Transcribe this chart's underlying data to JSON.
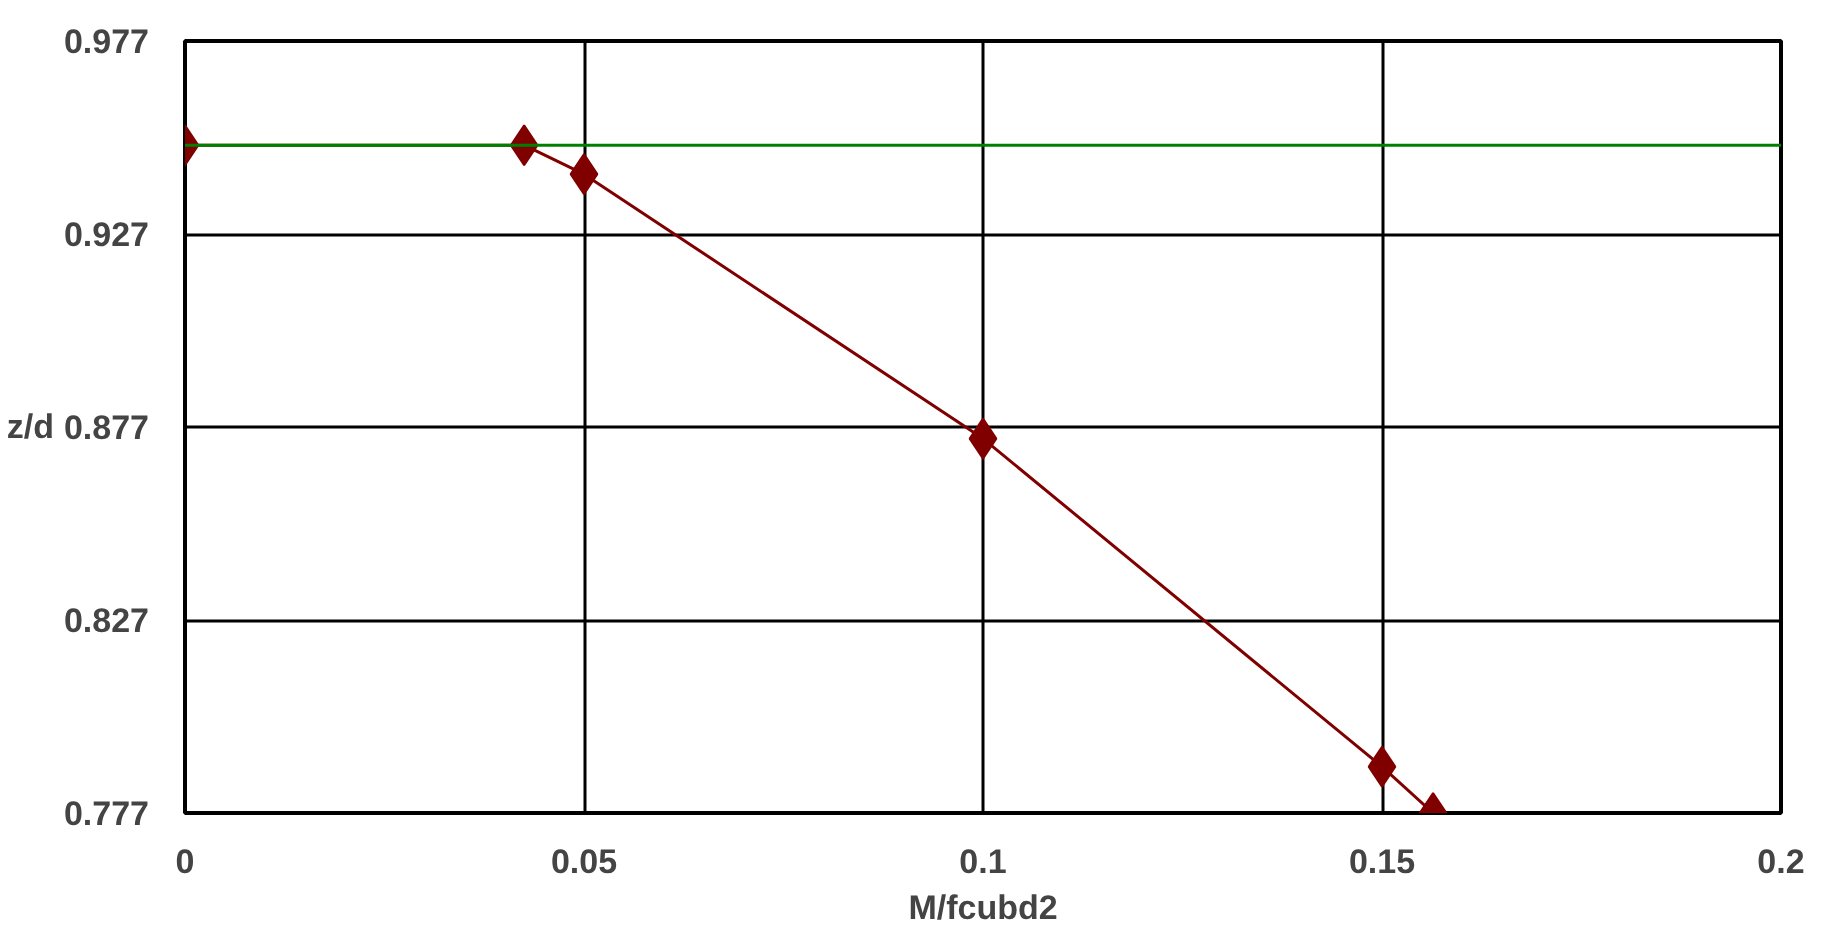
{
  "chart_data": {
    "type": "line",
    "xlabel": "M/fcubd2",
    "ylabel": "z/d",
    "xlim": [
      0,
      0.2
    ],
    "xticks": [
      0,
      0.05,
      0.1,
      0.15,
      0.2
    ],
    "ylim": [
      0.777,
      0.977
    ],
    "yticks": [
      0.777,
      0.827,
      0.877,
      0.927,
      0.977
    ],
    "grid": true,
    "series": [
      {
        "color": "#800000",
        "x": [
          0,
          0.0425,
          0.05,
          0.1,
          0.15,
          0.1564
        ],
        "values": [
          0.95,
          0.95,
          0.9425,
          0.874,
          0.789,
          0.777
        ],
        "marker": "diamond"
      },
      {
        "color": "#008000",
        "x": [
          0,
          0.2
        ],
        "values": [
          0.95,
          0.95
        ],
        "marker": "none"
      }
    ]
  }
}
